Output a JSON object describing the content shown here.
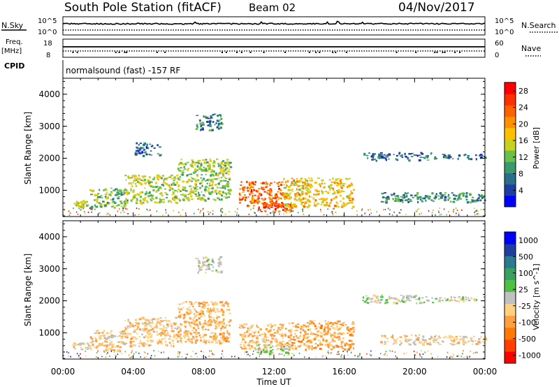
{
  "header": {
    "station": "South Pole Station (fitACF)",
    "beam": "Beam 02",
    "date": "04/Nov/2017"
  },
  "param_panels": {
    "nsky_label": "N.Sky",
    "nsearch_label": "N.Search",
    "nsky_ticks": [
      "10^5",
      "10^0"
    ],
    "nsearch_ticks": [
      "10^5",
      "10^0"
    ],
    "freq_label": "Freq.",
    "freq_unit": "[MHz]",
    "freq_ticks": [
      "18",
      "8"
    ],
    "nave_label": "Nave",
    "nave_ticks": [
      "60",
      "0"
    ],
    "cpid_label": "CPID",
    "cpid_text": "normalsound (fast) -157 RF"
  },
  "colors": {
    "power_scale": [
      "#0000ff",
      "#1f3fa0",
      "#2a6f8a",
      "#3a9a6a",
      "#6cc04a",
      "#c8d020",
      "#ffc000",
      "#ff9000",
      "#ff6000",
      "#ff3000",
      "#ff0000"
    ],
    "velocity_scale": [
      "#ff0000",
      "#ff4000",
      "#ff7a00",
      "#ffa040",
      "#ffd080",
      "#c0c0c0",
      "#50c040",
      "#3aa060",
      "#2a7a90",
      "#1f3fa0",
      "#0000ff"
    ]
  },
  "chart_data": [
    {
      "type": "heatmap",
      "id": "power",
      "title": "",
      "ylabel": "Slant Range [km]",
      "xlabel": "",
      "xlim": [
        "00:00",
        "00:00"
      ],
      "ylim": [
        180,
        4500
      ],
      "yticks": [
        "4000",
        "3000",
        "2000",
        "1000"
      ],
      "colorbar": {
        "label": "Power [dB]",
        "ticks": [
          "28",
          "24",
          "20",
          "16",
          "12",
          "8",
          "4"
        ],
        "range": [
          0,
          30
        ]
      },
      "echo_regions": [
        {
          "t0": 0.5,
          "t1": 1.5,
          "r0": 500,
          "r1": 700,
          "level": 14
        },
        {
          "t0": 1.5,
          "t1": 3.5,
          "r0": 450,
          "r1": 1100,
          "level": 12
        },
        {
          "t0": 3.5,
          "t1": 6.5,
          "r0": 600,
          "r1": 1500,
          "level": 14
        },
        {
          "t0": 6.5,
          "t1": 9.5,
          "r0": 700,
          "r1": 2000,
          "level": 13
        },
        {
          "t0": 7.5,
          "t1": 9.0,
          "r0": 2900,
          "r1": 3400,
          "level": 7
        },
        {
          "t0": 4.0,
          "t1": 5.5,
          "r0": 2100,
          "r1": 2500,
          "level": 6
        },
        {
          "t0": 10.0,
          "t1": 12.5,
          "r0": 500,
          "r1": 1300,
          "level": 24
        },
        {
          "t0": 11.0,
          "t1": 13.0,
          "r0": 350,
          "r1": 650,
          "level": 26
        },
        {
          "t0": 12.5,
          "t1": 16.5,
          "r0": 500,
          "r1": 1400,
          "level": 18
        },
        {
          "t0": 17.0,
          "t1": 21.0,
          "r0": 1950,
          "r1": 2200,
          "level": 6
        },
        {
          "t0": 18.0,
          "t1": 24.0,
          "r0": 650,
          "r1": 950,
          "level": 8
        },
        {
          "t0": 21.0,
          "t1": 24.0,
          "r0": 2000,
          "r1": 2150,
          "level": 6
        }
      ]
    },
    {
      "type": "heatmap",
      "id": "velocity",
      "title": "",
      "ylabel": "Slant Range [km]",
      "xlabel": "Time UT",
      "xticks": [
        "00:00",
        "04:00",
        "08:00",
        "12:00",
        "16:00",
        "20:00",
        "00:00"
      ],
      "ylim": [
        180,
        4500
      ],
      "yticks": [
        "4000",
        "3000",
        "2000",
        "1000"
      ],
      "colorbar": {
        "label": "Velocity [m s^-1]",
        "ticks": [
          "1000",
          "500",
          "100",
          "25",
          "-25",
          "-100",
          "-500",
          "-1000"
        ],
        "range": [
          -1250,
          1250
        ]
      },
      "echo_regions": [
        {
          "t0": 0.5,
          "t1": 1.5,
          "r0": 500,
          "r1": 700,
          "velocity": -200
        },
        {
          "t0": 1.5,
          "t1": 3.5,
          "r0": 450,
          "r1": 1100,
          "velocity": -300
        },
        {
          "t0": 3.5,
          "t1": 6.5,
          "r0": 600,
          "r1": 1500,
          "velocity": -300
        },
        {
          "t0": 6.5,
          "t1": 9.5,
          "r0": 700,
          "r1": 2000,
          "velocity": -400
        },
        {
          "t0": 7.5,
          "t1": 9.0,
          "r0": 2900,
          "r1": 3400,
          "velocity": 0
        },
        {
          "t0": 10.0,
          "t1": 12.5,
          "r0": 500,
          "r1": 1300,
          "velocity": -350
        },
        {
          "t0": 11.0,
          "t1": 13.0,
          "r0": 350,
          "r1": 650,
          "velocity": 80
        },
        {
          "t0": 12.5,
          "t1": 16.5,
          "r0": 500,
          "r1": 1400,
          "velocity": -450
        },
        {
          "t0": 17.0,
          "t1": 21.0,
          "r0": 1950,
          "r1": 2200,
          "velocity": 30
        },
        {
          "t0": 18.0,
          "t1": 24.0,
          "r0": 650,
          "r1": 950,
          "velocity": -250
        },
        {
          "t0": 21.0,
          "t1": 24.0,
          "r0": 2000,
          "r1": 2150,
          "velocity": 0
        }
      ]
    }
  ]
}
